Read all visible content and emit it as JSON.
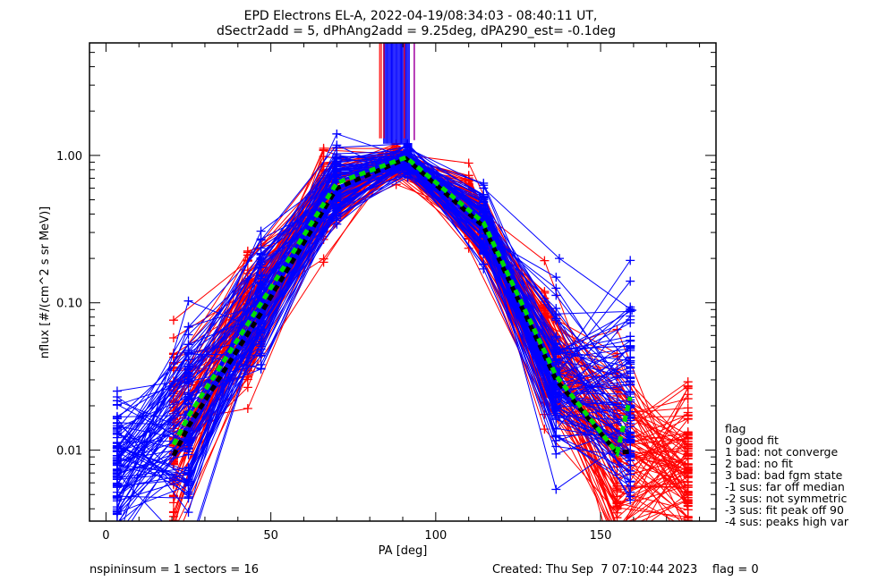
{
  "chart_data": {
    "type": "line",
    "title_lines": [
      "EPD Electrons EL-A, 2022-04-19/08:34:03 - 08:40:11 UT,",
      "dSectr2add = 5, dPhAng2add = 9.25deg, dPA290_est=  -0.1deg"
    ],
    "xlabel": "PA [deg]",
    "ylabel": "nflux [#/(cm^2 s sr MeV)]",
    "xlim": [
      -5,
      185
    ],
    "ylim": [
      0.0033,
      5.8
    ],
    "yscale": "log",
    "x_ticks": [
      0,
      50,
      100,
      150
    ],
    "x_tick_labels": [
      "0",
      "50",
      "100",
      "150"
    ],
    "y_ticks": [
      0.01,
      0.1,
      1.0
    ],
    "y_tick_labels": [
      "0.01",
      "0.10",
      "1.00"
    ],
    "pa_columns": [
      3.4,
      20.5,
      25,
      43,
      47,
      66,
      70,
      84,
      88,
      91.5,
      110,
      114.5,
      133,
      136.5,
      155,
      159,
      176.5
    ],
    "colors": {
      "trace_a": "#ff0000",
      "trace_b": "#0000ff",
      "fit": "#00dd00",
      "median": "#000000",
      "saturated_edge": "#a000a0"
    },
    "series": [
      {
        "name": "median",
        "style": "dashed-black",
        "x": [
          20.5,
          25,
          47,
          70,
          91,
          114.5,
          136.5,
          155,
          159
        ],
        "y": [
          0.0092,
          0.0145,
          0.085,
          0.6,
          0.95,
          0.33,
          0.03,
          0.0096,
          0.0098
        ]
      },
      {
        "name": "fit",
        "style": "dashed-green",
        "x": [
          20.5,
          25,
          47,
          70,
          91,
          114.5,
          136.5,
          155,
          159
        ],
        "y": [
          0.0109,
          0.017,
          0.099,
          0.65,
          0.97,
          0.35,
          0.032,
          0.0096,
          0.023
        ]
      },
      {
        "name": "outlier-trace",
        "style": "blue",
        "x": [
          114.5,
          137.5,
          159.5
        ],
        "y": [
          0.6,
          0.2,
          0.089
        ]
      }
    ],
    "trace_envelope": {
      "description": "Many individual spectra (red and blue) with + markers at each PA column",
      "approx_trace_count_per_color": 90,
      "peak_pa": 91.5,
      "peak_value": 1.2,
      "low_pa_spread": [
        0.0033,
        0.06
      ],
      "high_pa_spread": [
        0.0033,
        0.09
      ]
    },
    "saturated_band": {
      "pa_range": [
        83,
        93
      ],
      "from_value": 1.2,
      "to_value": "top"
    },
    "legend": {
      "title": "flag",
      "placement": "right",
      "entries": [
        " 0 good fit",
        " 1 bad: not converge",
        " 2 bad: no fit",
        " 3 bad: bad fgm state",
        "-1 sus: far off median",
        "-2 sus: not symmetric",
        "-3 sus: fit peak off 90",
        "-4 sus: peaks high var"
      ]
    }
  },
  "footer": {
    "left": "nspininsum =  1  sectors = 16",
    "right": "Created: Thu Sep  7 07:10:44 2023    flag = 0"
  }
}
